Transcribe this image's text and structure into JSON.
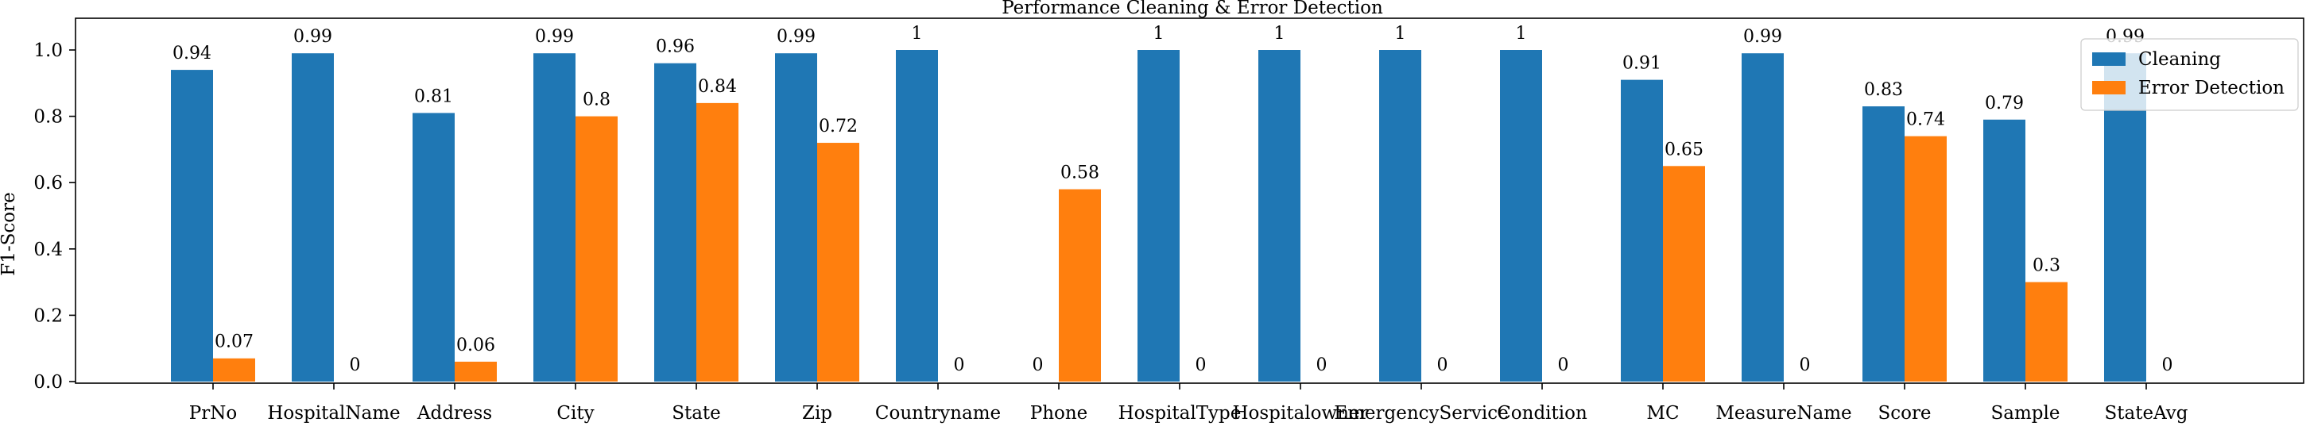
{
  "chart_data": {
    "type": "bar",
    "title": "Performance Cleaning & Error Detection",
    "xlabel": "",
    "ylabel": "F1-Score",
    "ylim": [
      0,
      1.0
    ],
    "yticks": [
      "0.0",
      "0.2",
      "0.4",
      "0.6",
      "0.8",
      "1.0"
    ],
    "legend_position": "top-right",
    "grid": false,
    "categories": [
      "PrNo",
      "HospitalName",
      "Address",
      "City",
      "State",
      "Zip",
      "Countryname",
      "Phone",
      "HospitalType",
      "Hospitalowner",
      "EmergencyService",
      "Condition",
      "MC",
      "MeasureName",
      "Score",
      "Sample",
      "StateAvg"
    ],
    "series": [
      {
        "name": "Cleaning",
        "color": "#1f77b4",
        "values": [
          0.94,
          0.99,
          0.81,
          0.99,
          0.96,
          0.99,
          1,
          0,
          1,
          1,
          1,
          1,
          0.91,
          0.99,
          0.83,
          0.79,
          0.99
        ],
        "labels": [
          "0.94",
          "0.99",
          "0.81",
          "0.99",
          "0.96",
          "0.99",
          "1",
          "0",
          "1",
          "1",
          "1",
          "1",
          "0.91",
          "0.99",
          "0.83",
          "0.79",
          "0.99"
        ]
      },
      {
        "name": "Error Detection",
        "color": "#ff7f0e",
        "values": [
          0.07,
          0,
          0.06,
          0.8,
          0.84,
          0.72,
          0,
          0.58,
          0,
          0,
          0,
          0,
          0.65,
          0,
          0.74,
          0.3,
          0
        ],
        "labels": [
          "0.07",
          "0",
          "0.06",
          "0.8",
          "0.84",
          "0.72",
          "0",
          "0.58",
          "0",
          "0",
          "0",
          "0",
          "0.65",
          "0",
          "0.74",
          "0.3",
          "0"
        ]
      }
    ]
  }
}
